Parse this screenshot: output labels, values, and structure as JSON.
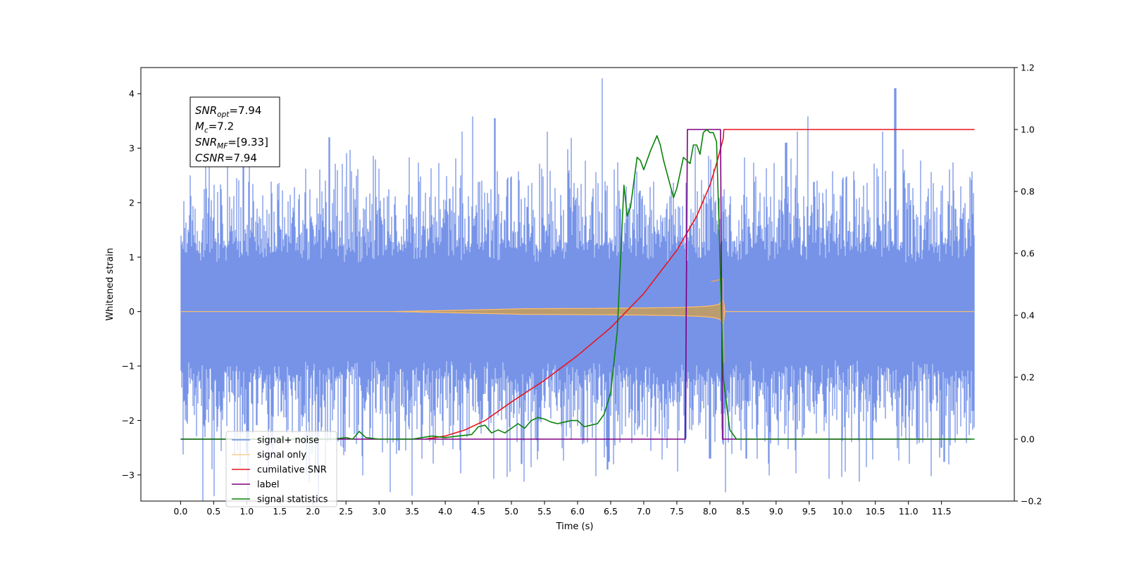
{
  "chart_data": {
    "type": "line",
    "xlabel": "Time (s)",
    "ylabel": "Whitened strain",
    "xlim": [
      -0.6,
      12.6
    ],
    "ylim": [
      -3.48,
      4.48
    ],
    "y2lim": [
      -0.2,
      1.2
    ],
    "xticks": [
      "0.0",
      "0.5",
      "1.0",
      "1.5",
      "2.0",
      "2.5",
      "3.0",
      "3.5",
      "4.0",
      "4.5",
      "5.0",
      "5.5",
      "6.0",
      "6.5",
      "7.0",
      "7.5",
      "8.0",
      "8.5",
      "9.0",
      "9.5",
      "10.0",
      "10.5",
      "11.0",
      "11.5"
    ],
    "yticks": [
      "−3",
      "−2",
      "−1",
      "0",
      "1",
      "2",
      "3",
      "4"
    ],
    "y2ticks": [
      "−0.2",
      "0.0",
      "0.2",
      "0.4",
      "0.6",
      "0.8",
      "1.0",
      "1.2"
    ],
    "legend_position": "lower-left",
    "annotation": {
      "lines": [
        {
          "base": "SNR",
          "sub": "opt",
          "value": "=7.94"
        },
        {
          "base": "M",
          "sub": "c",
          "value": "=7.2"
        },
        {
          "base": "SNR",
          "sub": "MF",
          "value": "=[9.33]"
        },
        {
          "base": "CSNR",
          "sub": "",
          "value": "=7.94"
        }
      ]
    },
    "series": [
      {
        "name": "signal+ noise",
        "color": "#6a8ae6",
        "axis": "left",
        "kind": "noise",
        "x_range": [
          0,
          12
        ],
        "amplitude": 1.0,
        "extremes": [
          [
            0.95,
            2.7
          ],
          [
            1.0,
            -2.6
          ],
          [
            2.25,
            3.2
          ],
          [
            3.3,
            -2.55
          ],
          [
            4.75,
            3.55
          ],
          [
            5.15,
            -2.8
          ],
          [
            6.45,
            -2.9
          ],
          [
            8.0,
            -2.7
          ],
          [
            8.55,
            -2.7
          ],
          [
            9.15,
            3.1
          ],
          [
            10.8,
            4.1
          ],
          [
            11.5,
            -2.5
          ]
        ]
      },
      {
        "name": "signal only",
        "color": "#ffbf66",
        "axis": "left",
        "kind": "chirp",
        "t_merge": 8.2,
        "x_range": [
          0,
          12
        ]
      },
      {
        "name": "cumilative SNR",
        "color": "#e8141e",
        "axis": "right",
        "x": [
          3.7,
          4.0,
          4.3,
          4.6,
          5.0,
          5.5,
          6.0,
          6.5,
          7.0,
          7.5,
          7.8,
          8.0,
          8.1,
          8.2,
          8.21,
          12.0
        ],
        "y": [
          0.0,
          0.01,
          0.03,
          0.06,
          0.12,
          0.19,
          0.27,
          0.36,
          0.47,
          0.61,
          0.72,
          0.82,
          0.89,
          0.97,
          1.0,
          1.0
        ]
      },
      {
        "name": "label",
        "color": "#800080",
        "axis": "right",
        "x": [
          0,
          7.63,
          7.66,
          8.16,
          8.19,
          11.95
        ],
        "y": [
          0,
          0,
          1,
          1,
          0,
          0
        ]
      },
      {
        "name": "signal statistics",
        "color": "#0a820a",
        "axis": "right",
        "x": [
          0.0,
          2.3,
          2.5,
          2.6,
          2.7,
          2.8,
          3.0,
          3.5,
          3.8,
          4.0,
          4.2,
          4.4,
          4.5,
          4.6,
          4.7,
          4.8,
          4.9,
          5.0,
          5.1,
          5.2,
          5.3,
          5.4,
          5.5,
          5.6,
          5.7,
          5.8,
          5.9,
          6.0,
          6.1,
          6.2,
          6.3,
          6.4,
          6.5,
          6.6,
          6.7,
          6.75,
          6.8,
          6.9,
          6.95,
          7.0,
          7.1,
          7.2,
          7.25,
          7.3,
          7.4,
          7.45,
          7.5,
          7.6,
          7.7,
          7.75,
          7.8,
          7.85,
          7.9,
          7.95,
          8.0,
          8.05,
          8.1,
          8.15,
          8.2,
          8.3,
          8.4,
          8.5,
          12.0
        ],
        "y": [
          0.0,
          0.0,
          0.005,
          0.0,
          0.025,
          0.005,
          0.0,
          0.0,
          0.01,
          0.005,
          0.01,
          0.015,
          0.04,
          0.045,
          0.02,
          0.03,
          0.02,
          0.035,
          0.05,
          0.035,
          0.06,
          0.07,
          0.065,
          0.055,
          0.05,
          0.055,
          0.06,
          0.06,
          0.04,
          0.045,
          0.05,
          0.08,
          0.15,
          0.35,
          0.82,
          0.72,
          0.75,
          0.91,
          0.9,
          0.87,
          0.93,
          0.98,
          0.95,
          0.9,
          0.82,
          0.78,
          0.81,
          0.91,
          0.89,
          0.95,
          0.95,
          0.92,
          0.99,
          1.0,
          0.99,
          0.99,
          0.96,
          0.6,
          0.2,
          0.03,
          0.0,
          0.0,
          0.0
        ]
      }
    ]
  }
}
